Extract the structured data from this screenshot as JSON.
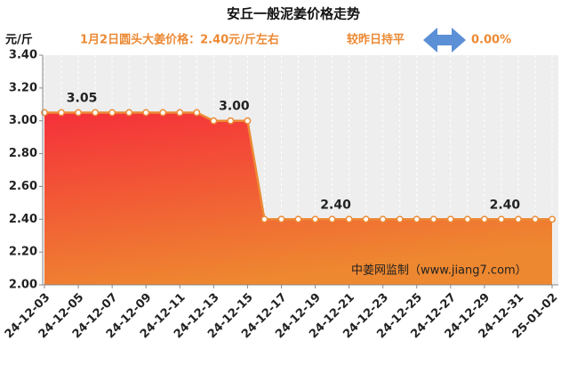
{
  "chart_data": {
    "type": "area",
    "title": "安丘一般泥姜价格走势",
    "y_label": "元/斤",
    "subtitle": "1月2日圆头大姜价格：2.40元/斤左右",
    "change_text": "较昨日持平",
    "change_value": "0.00%",
    "watermark": "中姜网监制（www.jiang7.com）",
    "categories": [
      "24-12-03",
      null,
      "24-12-05",
      null,
      "24-12-07",
      null,
      "24-12-09",
      null,
      "24-12-11",
      null,
      "24-12-13",
      null,
      "24-12-15",
      null,
      "24-12-17",
      null,
      "24-12-19",
      null,
      "24-12-21",
      null,
      "24-12-23",
      null,
      "24-12-25",
      null,
      "24-12-27",
      null,
      "24-12-29",
      null,
      "24-12-31",
      null,
      "25-01-02"
    ],
    "values": [
      3.05,
      3.05,
      3.05,
      3.05,
      3.05,
      3.05,
      3.05,
      3.05,
      3.05,
      3.05,
      3.0,
      3.0,
      3.0,
      2.4,
      2.4,
      2.4,
      2.4,
      2.4,
      2.4,
      2.4,
      2.4,
      2.4,
      2.4,
      2.4,
      2.4,
      2.4,
      2.4,
      2.4,
      2.4,
      2.4,
      2.4
    ],
    "value_labels": [
      null,
      null,
      "3.05",
      null,
      null,
      null,
      null,
      null,
      null,
      null,
      null,
      "3.00",
      null,
      null,
      null,
      null,
      null,
      "2.40",
      null,
      null,
      null,
      null,
      null,
      null,
      null,
      null,
      null,
      "2.40",
      null,
      null,
      null
    ],
    "color": "#ec8a35",
    "ylim": [
      2.0,
      3.4
    ],
    "yticks": [
      {
        "value": 2.0,
        "label": "2.00"
      },
      {
        "value": 2.2,
        "label": "2.20"
      },
      {
        "value": 2.4,
        "label": "2.40"
      },
      {
        "value": 2.6,
        "label": "2.60"
      },
      {
        "value": 2.8,
        "label": "2.80"
      },
      {
        "value": 3.0,
        "label": "3.00"
      },
      {
        "value": 3.2,
        "label": "3.20"
      },
      {
        "value": 3.4,
        "label": "3.40"
      }
    ],
    "grid": true
  }
}
